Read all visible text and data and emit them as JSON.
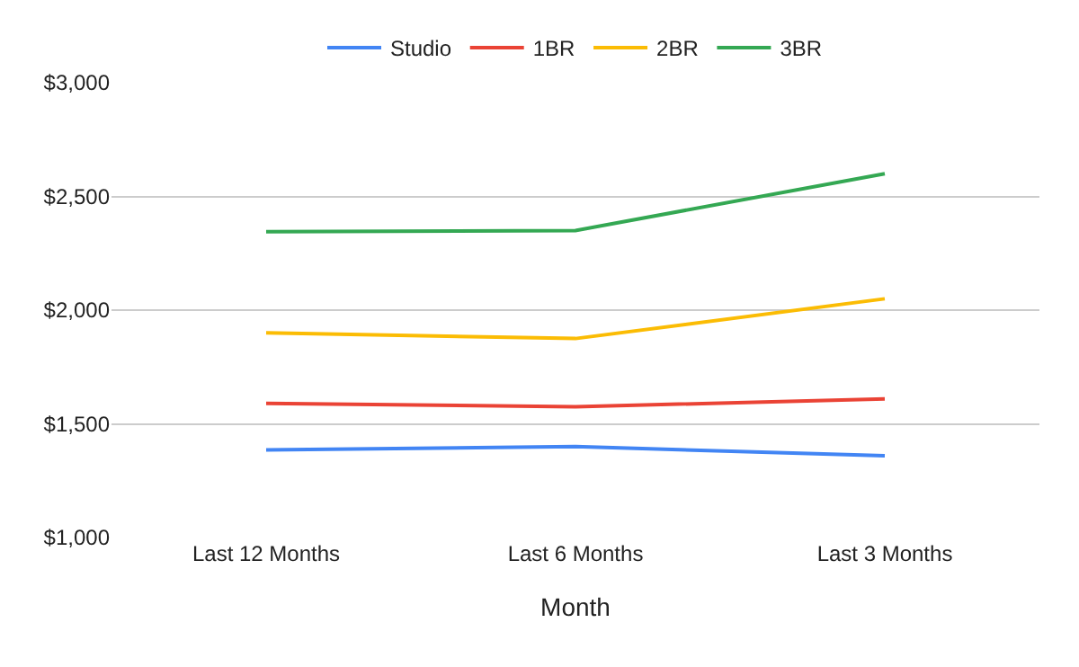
{
  "chart_data": {
    "type": "line",
    "xlabel": "Month",
    "categories": [
      "Last 12 Months",
      "Last 6 Months",
      "Last 3 Months"
    ],
    "series": [
      {
        "name": "Studio",
        "color": "#4285f4",
        "values": [
          1385,
          1400,
          1360
        ]
      },
      {
        "name": "1BR",
        "color": "#ea4335",
        "values": [
          1590,
          1575,
          1610
        ]
      },
      {
        "name": "2BR",
        "color": "#fbbc04",
        "values": [
          1900,
          1875,
          2050
        ]
      },
      {
        "name": "3BR",
        "color": "#34a853",
        "values": [
          2345,
          2350,
          2600
        ]
      }
    ],
    "ylim": [
      1000,
      3000
    ],
    "yticks": [
      {
        "value": 1000,
        "label": "$1,000"
      },
      {
        "value": 1500,
        "label": "$1,500"
      },
      {
        "value": 2000,
        "label": "$2,000"
      },
      {
        "value": 2500,
        "label": "$2,500"
      },
      {
        "value": 3000,
        "label": "$3,000"
      }
    ],
    "grid": "y",
    "legend": "top",
    "marker": "none",
    "line_style": "solid"
  }
}
